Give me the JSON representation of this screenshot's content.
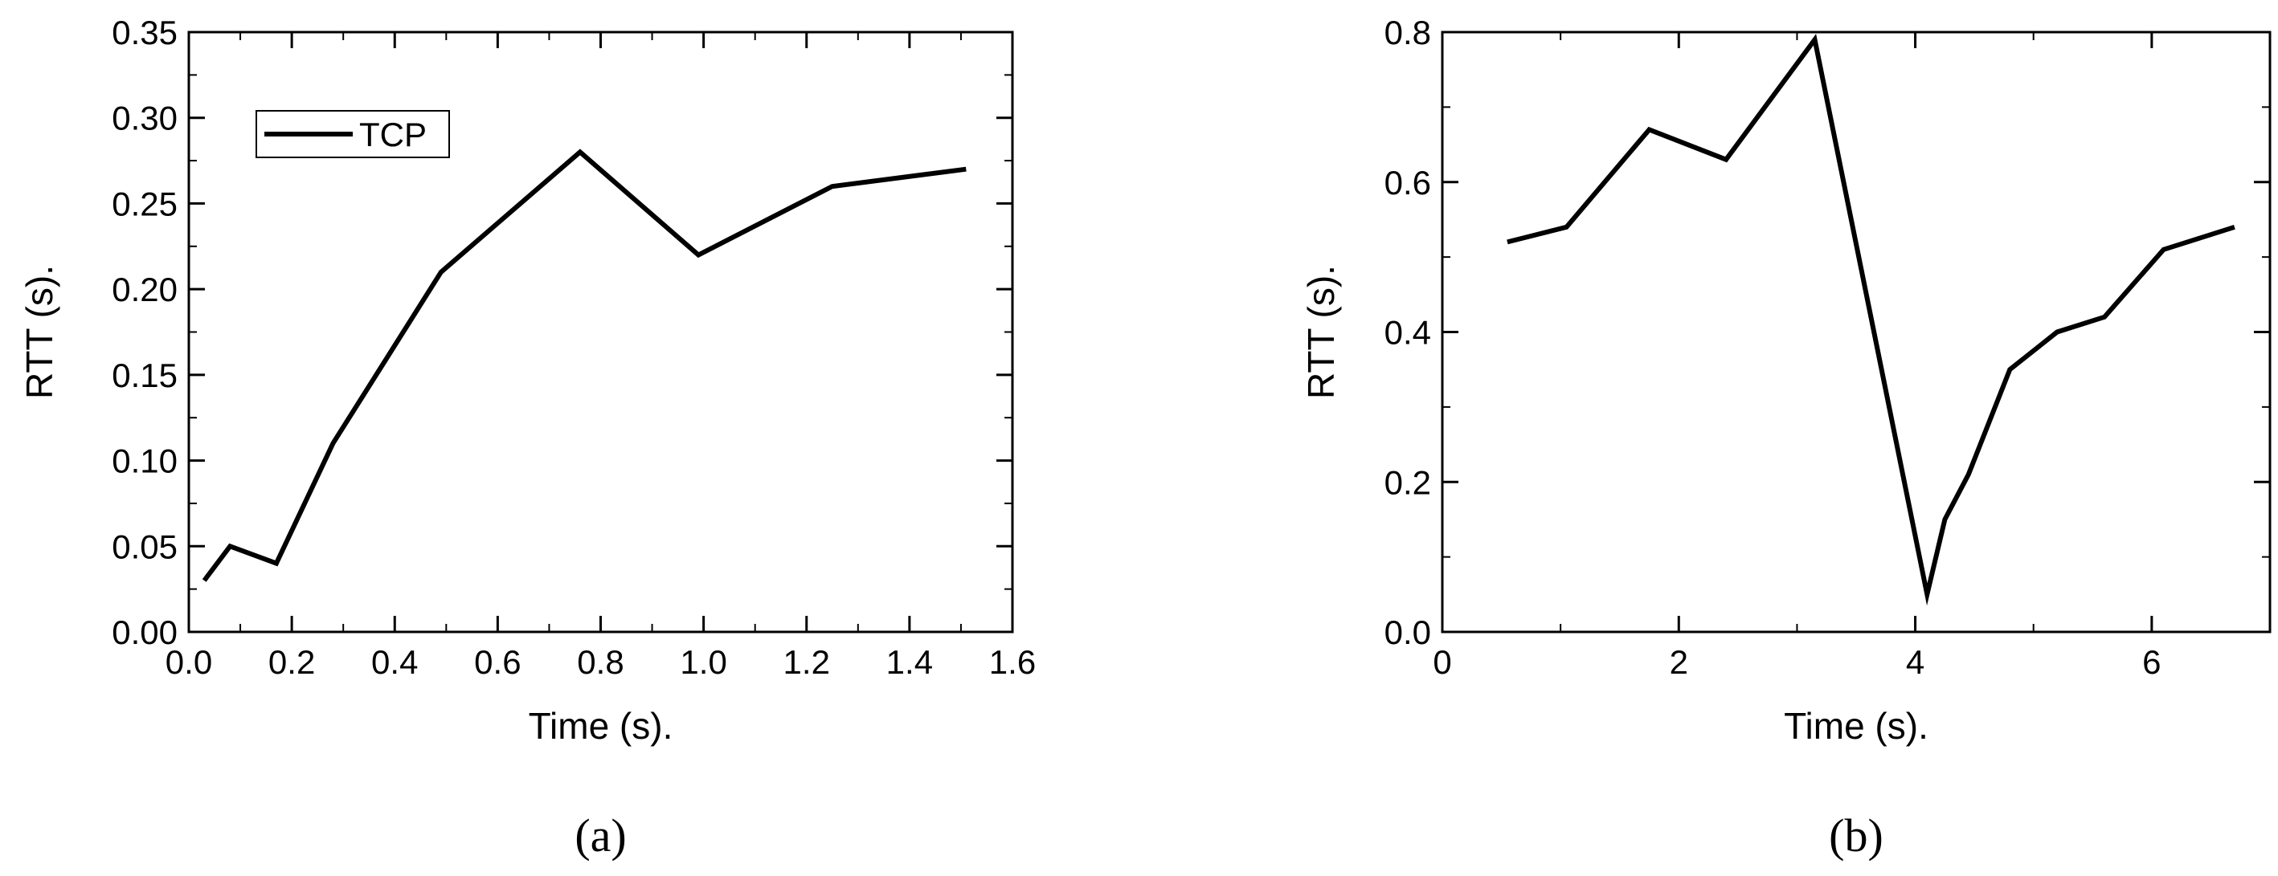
{
  "chart_data": [
    {
      "type": "line",
      "caption": "(a)",
      "xlabel": "Time (s).",
      "ylabel": "RTT (s).",
      "xlim": [
        0.0,
        1.6
      ],
      "ylim": [
        0.0,
        0.35
      ],
      "x_ticks": [
        "0.0",
        "0.2",
        "0.4",
        "0.6",
        "0.8",
        "1.0",
        "1.2",
        "1.4",
        "1.6"
      ],
      "y_ticks": [
        "0.00",
        "0.05",
        "0.10",
        "0.15",
        "0.20",
        "0.25",
        "0.30",
        "0.35"
      ],
      "grid": false,
      "legend": {
        "position": "top-left",
        "entries": [
          "TCP"
        ]
      },
      "series": [
        {
          "name": "TCP",
          "color": "#000000",
          "x": [
            0.03,
            0.08,
            0.17,
            0.28,
            0.49,
            0.76,
            0.99,
            1.25,
            1.51
          ],
          "y": [
            0.03,
            0.05,
            0.04,
            0.11,
            0.21,
            0.28,
            0.22,
            0.26,
            0.27
          ]
        }
      ]
    },
    {
      "type": "line",
      "caption": "(b)",
      "xlabel": "Time (s).",
      "ylabel": "RTT (s).",
      "xlim": [
        0,
        7
      ],
      "ylim": [
        0.0,
        0.8
      ],
      "x_ticks": [
        "0",
        "2",
        "4",
        "6"
      ],
      "y_ticks": [
        "0.0",
        "0.2",
        "0.4",
        "0.6",
        "0.8"
      ],
      "grid": false,
      "series": [
        {
          "color": "#000000",
          "x": [
            0.55,
            1.05,
            1.75,
            2.4,
            3.15,
            4.1,
            4.25,
            4.45,
            4.8,
            5.2,
            5.6,
            6.1,
            6.7
          ],
          "y": [
            0.52,
            0.54,
            0.67,
            0.63,
            0.79,
            0.05,
            0.15,
            0.21,
            0.35,
            0.4,
            0.42,
            0.51,
            0.54
          ]
        }
      ]
    }
  ]
}
